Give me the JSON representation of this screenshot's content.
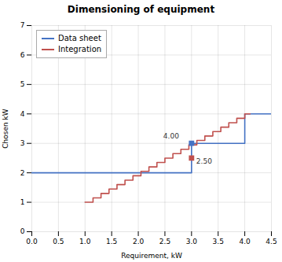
{
  "chart_data": {
    "type": "line",
    "title": "Dimensioning of equipment",
    "xlabel": "Requirement, kW",
    "ylabel": "Chosen kW",
    "xlim": [
      0,
      4.5
    ],
    "ylim": [
      0,
      7
    ],
    "xticks": [
      {
        "value": 0,
        "label": "0.0"
      },
      {
        "value": 0.5,
        "label": "0.5"
      },
      {
        "value": 1,
        "label": "1.0"
      },
      {
        "value": 1.5,
        "label": "1.5"
      },
      {
        "value": 2,
        "label": "2.0"
      },
      {
        "value": 2.5,
        "label": "2.5"
      },
      {
        "value": 3,
        "label": "3.0"
      },
      {
        "value": 3.5,
        "label": "3.5"
      },
      {
        "value": 4,
        "label": "4.0"
      },
      {
        "value": 4.5,
        "label": "4.5"
      }
    ],
    "yticks": [
      0,
      1,
      2,
      3,
      4,
      5,
      6,
      7
    ],
    "grid": true,
    "legend": "upper left",
    "series": [
      {
        "name": "Data sheet",
        "color": "#4472C4",
        "x": [
          0.0,
          3.0,
          3.0,
          4.0,
          4.0,
          4.5
        ],
        "values": [
          2.0,
          2.0,
          3.0,
          3.0,
          4.0,
          4.0
        ]
      },
      {
        "name": "Integration",
        "color": "#C0504D",
        "x": [
          1.0,
          1.15,
          1.15,
          1.3,
          1.3,
          1.45,
          1.45,
          1.6,
          1.6,
          1.75,
          1.75,
          1.9,
          1.9,
          2.05,
          2.05,
          2.2,
          2.2,
          2.35,
          2.35,
          2.5,
          2.5,
          2.65,
          2.65,
          2.8,
          2.8,
          2.95,
          2.95,
          3.1,
          3.1,
          3.25,
          3.25,
          3.4,
          3.4,
          3.55,
          3.55,
          3.7,
          3.7,
          3.85,
          3.85,
          4.0,
          4.0,
          4.1
        ],
        "values": [
          1.0,
          1.0,
          1.15,
          1.15,
          1.3,
          1.3,
          1.45,
          1.45,
          1.6,
          1.6,
          1.75,
          1.75,
          1.9,
          1.9,
          2.05,
          2.05,
          2.2,
          2.2,
          2.35,
          2.35,
          2.5,
          2.5,
          2.65,
          2.65,
          2.8,
          2.8,
          2.95,
          2.95,
          3.1,
          3.1,
          3.25,
          3.25,
          3.4,
          3.4,
          3.55,
          3.55,
          3.7,
          3.7,
          3.85,
          3.85,
          4.0,
          4.0
        ]
      }
    ],
    "annotations": [
      {
        "text": "4.00",
        "x": 3.0,
        "y": 3.0,
        "color": "#4472C4",
        "marker": "square"
      },
      {
        "text": "2.50",
        "x": 3.0,
        "y": 2.5,
        "color": "#C0504D",
        "marker": "square"
      }
    ]
  }
}
